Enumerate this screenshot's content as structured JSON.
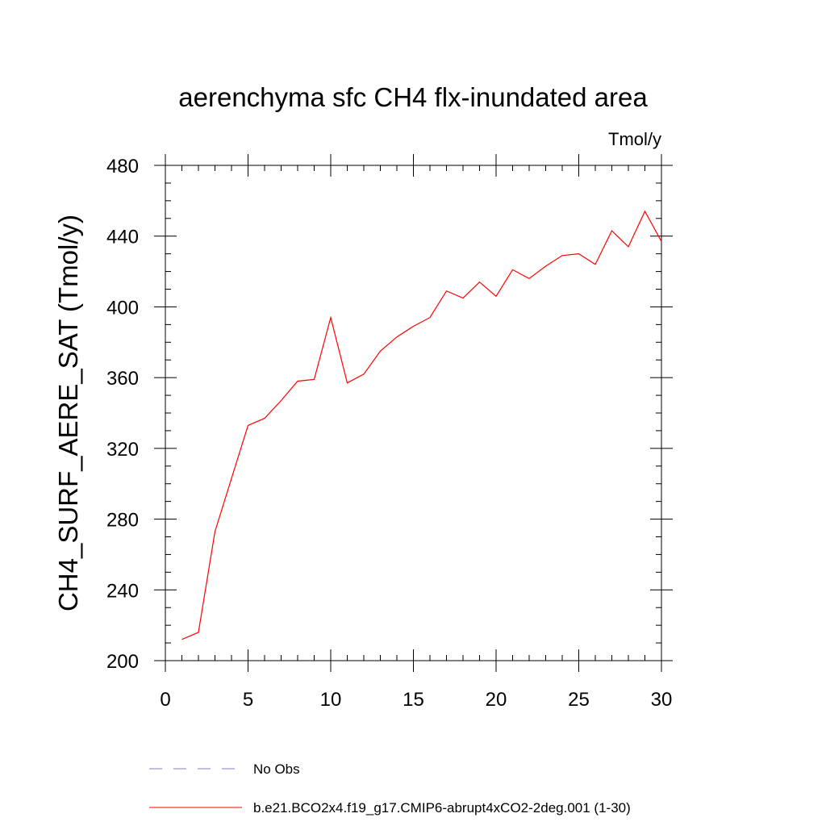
{
  "chart_data": {
    "type": "line",
    "title": "aerenchyma sfc CH4 flx-inundated area",
    "units": "Tmol/y",
    "xlabel": "",
    "ylabel": "CH4_SURF_AERE_SAT  (Tmol/y)",
    "xlim": [
      0,
      30
    ],
    "ylim": [
      200,
      480
    ],
    "xticks": [
      0,
      5,
      10,
      15,
      20,
      25,
      30
    ],
    "yticks": [
      200,
      240,
      280,
      320,
      360,
      400,
      440,
      480
    ],
    "grid": false,
    "legend_position": "bottom",
    "series": [
      {
        "name": "No Obs",
        "color": "#7f7fcf",
        "dash": "dashed",
        "x": [],
        "y": []
      },
      {
        "name": "b.e21.BCO2x4.f19_g17.CMIP6-abrupt4xCO2-2deg.001 (1-30)",
        "color": "#ff0000",
        "dash": "solid",
        "x": [
          1,
          2,
          3,
          4,
          5,
          6,
          7,
          8,
          9,
          10,
          11,
          12,
          13,
          14,
          15,
          16,
          17,
          18,
          19,
          20,
          21,
          22,
          23,
          24,
          25,
          26,
          27,
          28,
          29,
          30
        ],
        "y": [
          212,
          216,
          273,
          303,
          333,
          337,
          347,
          358,
          359,
          394,
          357,
          362,
          375,
          383,
          389,
          394,
          409,
          405,
          414,
          406,
          421,
          416,
          423,
          429,
          430,
          424,
          443,
          434,
          454,
          437
        ]
      }
    ]
  }
}
